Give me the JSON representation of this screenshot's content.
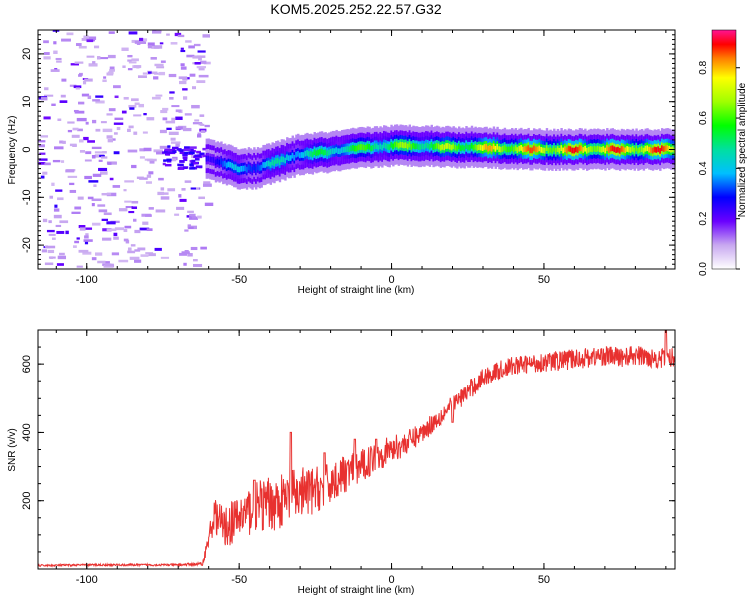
{
  "figure_title": "KOM5.2025.252.22.57.G32",
  "chart_data": [
    {
      "type": "heatmap",
      "title": "KOM5.2025.252.22.57.G32",
      "xlabel": "Height of straight line (km)",
      "ylabel": "Frequency (Hz)",
      "xlim": [
        -116,
        93
      ],
      "ylim": [
        -25,
        25
      ],
      "xticks": [
        -100,
        -50,
        0,
        50
      ],
      "yticks": [
        -20,
        -10,
        0,
        10,
        20
      ],
      "colorbar": {
        "label": "Normalized spectral amplitude",
        "range": [
          0.0,
          0.95
        ],
        "ticks": [
          0.0,
          0.2,
          0.4,
          0.6,
          0.8
        ]
      },
      "noise_region_x": [
        -116,
        -61
      ],
      "track": {
        "x": [
          -60,
          -50,
          -45,
          -40,
          -30,
          -20,
          -10,
          0,
          10,
          20,
          30,
          40,
          50,
          60,
          70,
          80,
          93
        ],
        "freq": [
          -2.0,
          -4.0,
          -4.0,
          -3.0,
          -1.0,
          -0.5,
          0.3,
          0.8,
          0.8,
          0.5,
          0.5,
          0.1,
          0.0,
          0.0,
          0.0,
          0.0,
          0.0
        ],
        "amplitude": [
          0.35,
          0.45,
          0.45,
          0.5,
          0.55,
          0.6,
          0.65,
          0.7,
          0.72,
          0.75,
          0.85,
          0.9,
          0.92,
          0.95,
          0.95,
          0.95,
          0.95
        ]
      }
    },
    {
      "type": "line",
      "xlabel": "Height of straight line (km)",
      "ylabel": "SNR (v/v)",
      "xlim": [
        -116,
        93
      ],
      "ylim": [
        0,
        700
      ],
      "xticks": [
        -100,
        -50,
        0,
        50
      ],
      "yticks": [
        200,
        400,
        600
      ],
      "series": [
        {
          "name": "SNR",
          "color": "#e8312f",
          "x": [
            -116,
            -100,
            -80,
            -70,
            -62,
            -60,
            -58,
            -55,
            -50,
            -45,
            -40,
            -35,
            -30,
            -25,
            -20,
            -15,
            -10,
            -5,
            0,
            5,
            10,
            15,
            20,
            25,
            30,
            35,
            40,
            45,
            50,
            55,
            60,
            65,
            70,
            75,
            80,
            85,
            90,
            93
          ],
          "values": [
            10,
            12,
            12,
            12,
            15,
            90,
            160,
            120,
            150,
            180,
            190,
            200,
            220,
            230,
            250,
            280,
            300,
            330,
            350,
            370,
            400,
            440,
            480,
            520,
            560,
            580,
            595,
            600,
            605,
            610,
            615,
            620,
            625,
            620,
            625,
            620,
            615,
            620
          ],
          "noise": [
            3,
            3,
            3,
            3,
            5,
            30,
            50,
            60,
            70,
            75,
            80,
            80,
            80,
            70,
            60,
            55,
            50,
            45,
            40,
            35,
            30,
            30,
            28,
            28,
            28,
            28,
            28,
            28,
            28,
            30,
            30,
            30,
            30,
            30,
            30,
            30,
            30,
            30
          ],
          "spikes": [
            [
              -45,
              260
            ],
            [
              -33,
              400
            ],
            [
              -22,
              340
            ],
            [
              -12,
              380
            ],
            [
              -5,
              380
            ],
            [
              20,
              430
            ],
            [
              90,
              700
            ]
          ]
        }
      ]
    }
  ]
}
